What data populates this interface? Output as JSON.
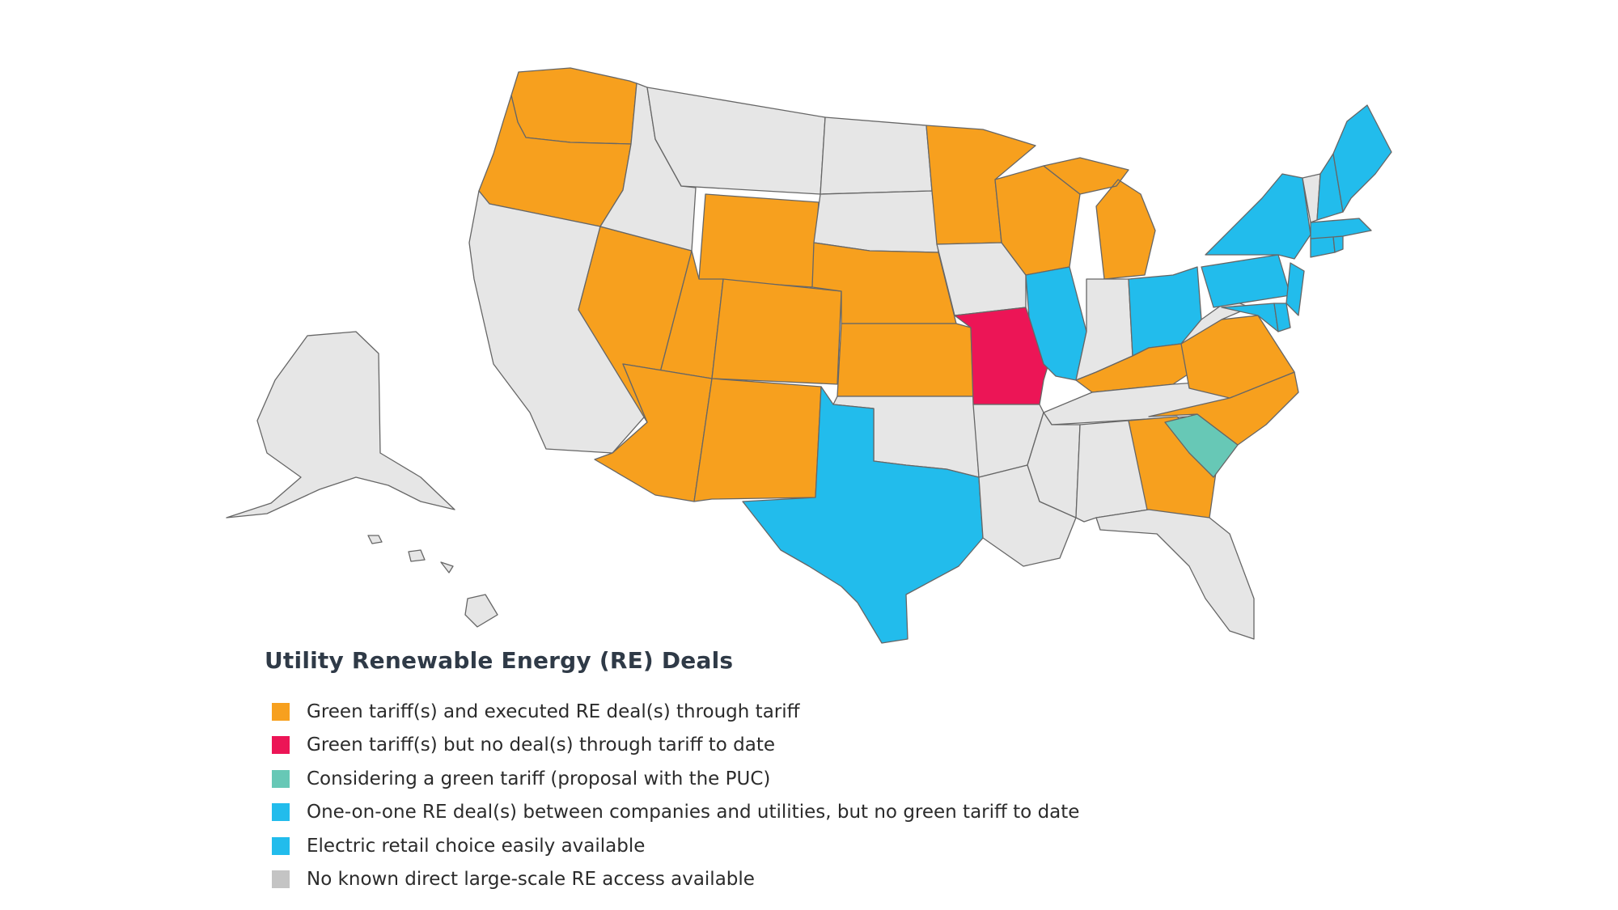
{
  "map": {
    "region": "United States",
    "colors": {
      "orange": "#f7a01e",
      "red": "#ec1556",
      "teal": "#67c8b6",
      "blue": "#22bcec",
      "gray": "#e6e6e6",
      "stroke": "#666666"
    },
    "states": {
      "WA": "orange",
      "OR": "orange",
      "CA": "gray",
      "NV": "orange",
      "ID": "gray",
      "MT": "gray",
      "WY": "orange",
      "UT": "orange",
      "AZ": "orange",
      "CO": "orange",
      "NM": "orange",
      "ND": "gray",
      "SD": "gray",
      "NE": "orange",
      "KS": "orange",
      "OK": "gray",
      "TX": "blue",
      "MN": "orange",
      "IA": "gray",
      "MO": "red",
      "AR": "gray",
      "LA": "gray",
      "WI": "orange",
      "IL": "blue",
      "MI": "orange",
      "IN": "gray",
      "OH": "blue",
      "KY": "orange",
      "TN": "gray",
      "MS": "gray",
      "AL": "gray",
      "GA": "orange",
      "FL": "gray",
      "SC": "teal",
      "NC": "orange",
      "VA": "orange",
      "WV": "gray",
      "PA": "blue",
      "NY": "blue",
      "MD": "blue",
      "DE": "blue",
      "NJ": "blue",
      "CT": "blue",
      "RI": "blue",
      "MA": "blue",
      "VT": "gray",
      "NH": "blue",
      "ME": "blue",
      "AK": "gray",
      "HI": "gray"
    }
  },
  "legend": {
    "title": "Utility Renewable Energy (RE) Deals",
    "items": [
      {
        "label": "Green tariff(s) and executed RE deal(s) through tariff",
        "color": "#f7a01e"
      },
      {
        "label": "Green tariff(s) but no deal(s) through tariff to date",
        "color": "#ec1556"
      },
      {
        "label": "Considering a green tariff (proposal with the PUC)",
        "color": "#67c8b6"
      },
      {
        "label": "One-on-one RE deal(s) between companies and utilities, but no green tariff to date",
        "color": "#22bcec"
      },
      {
        "label": "Electric retail choice easily available",
        "color": "#22bcec"
      },
      {
        "label": "No known direct large-scale RE access available",
        "color": "#c4c4c4"
      }
    ]
  }
}
